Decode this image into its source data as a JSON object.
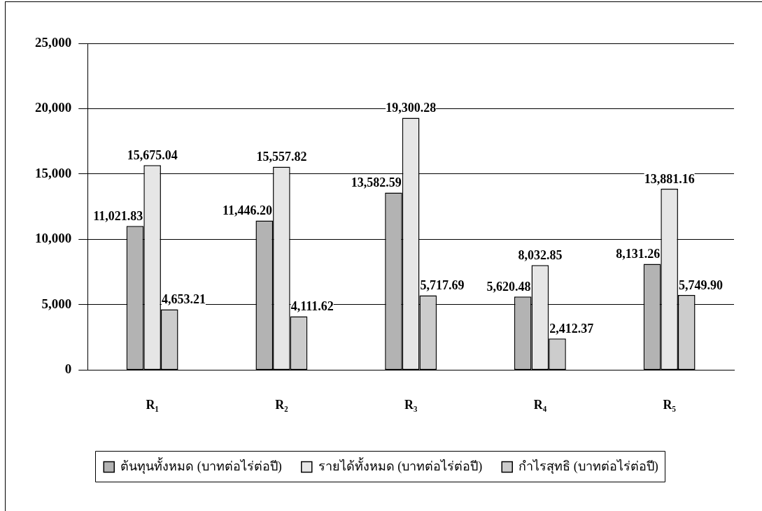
{
  "chart_data": {
    "type": "bar",
    "categories": [
      "R₁",
      "R₂",
      "R₃",
      "R₄",
      "R₅"
    ],
    "series": [
      {
        "name": "ต้นทุนทั้งหมด (บาทต่อไร่ต่อปี)",
        "color": "#b3b3b3",
        "values": [
          11021.83,
          11446.2,
          13582.59,
          5620.48,
          8131.26
        ],
        "value_labels": [
          "11,021.83",
          "11,446.20",
          "13,582.59",
          "5,620.48",
          "8,131.26"
        ]
      },
      {
        "name": "รายได้ทั้งหมด (บาทต่อไร่ต่อปี)",
        "color": "#e6e6e6",
        "values": [
          15675.04,
          15557.82,
          19300.28,
          8032.85,
          13881.16
        ],
        "value_labels": [
          "15,675.04",
          "15,557.82",
          "19,300.28",
          "8,032.85",
          "13,881.16"
        ]
      },
      {
        "name": "กำไรสุทธิ (บาทต่อไร่ต่อปี)",
        "color": "#cccccc",
        "values": [
          4653.21,
          4111.62,
          5717.69,
          2412.37,
          5749.9
        ],
        "value_labels": [
          "4,653.21",
          "4,111.62",
          "5,717.69",
          "2,412.37",
          "5,749.90"
        ]
      }
    ],
    "ylim": [
      0,
      25000
    ],
    "yticks": [
      0,
      {
        "value": 5000,
        "label": "5,000"
      },
      {
        "value": 10000,
        "label": "10,000"
      },
      {
        "value": 15000,
        "label": "15,000"
      },
      {
        "value": 20000,
        "label": "20,000"
      },
      {
        "value": 25000,
        "label": "25,000"
      }
    ],
    "grid": "y",
    "legend": "bottom"
  }
}
